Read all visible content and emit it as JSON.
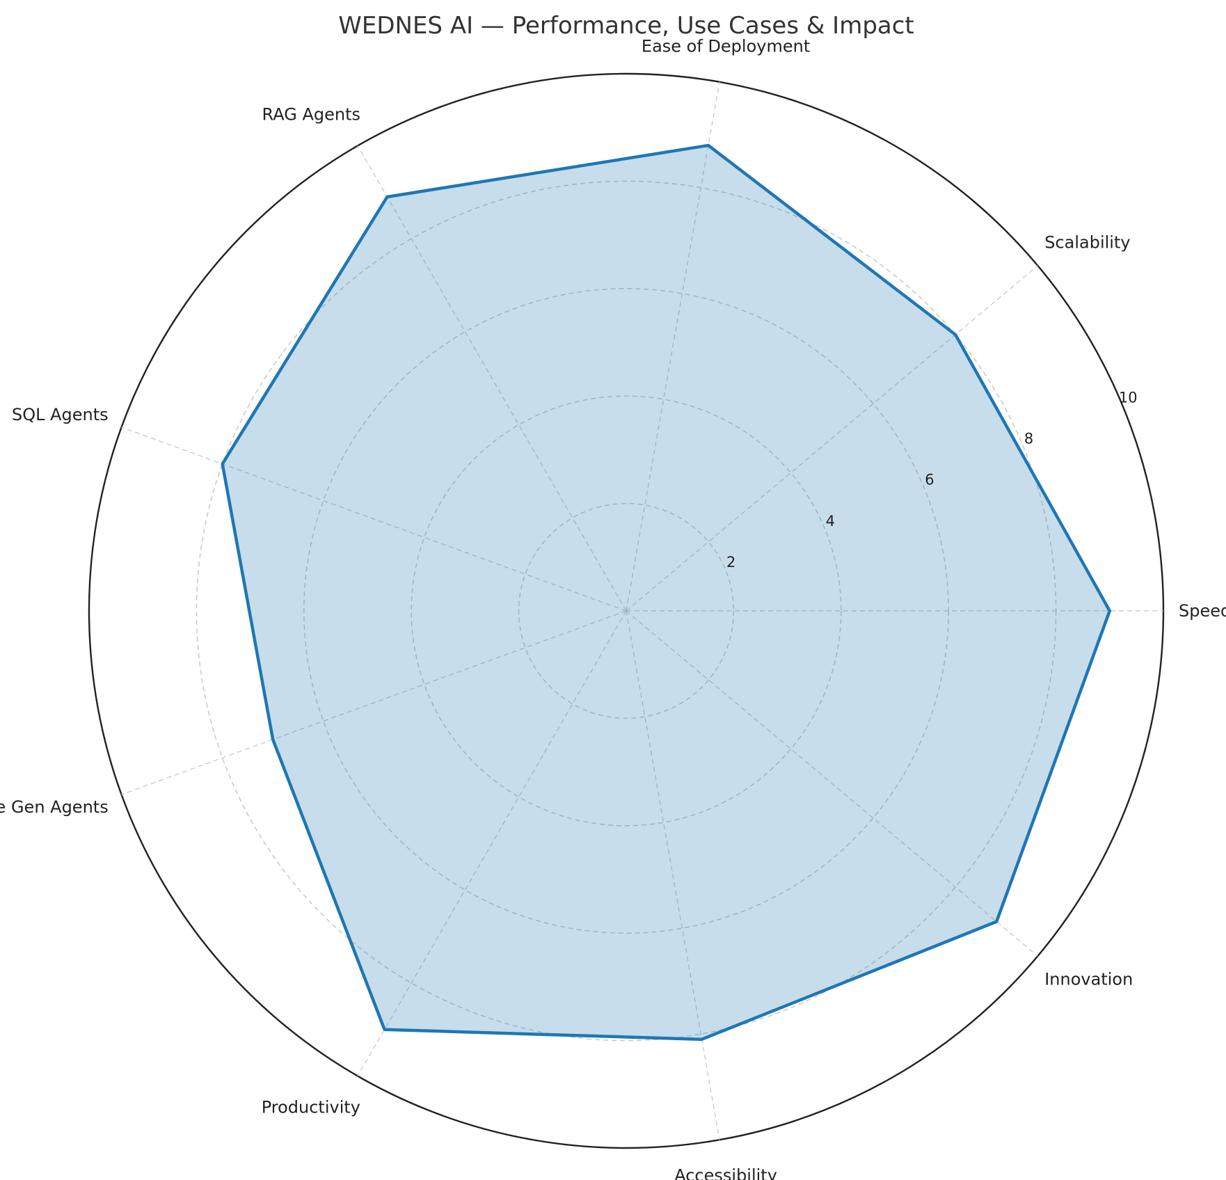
{
  "chart_data": {
    "type": "radar",
    "title": "WEDNES AI — Performance, Use Cases & Impact",
    "categories": [
      "Speed",
      "Scalability",
      "Ease of Deployment",
      "RAG Agents",
      "SQL Agents",
      "Image Gen Agents",
      "Productivity",
      "Accessibility",
      "Innovation"
    ],
    "series": [
      {
        "values": [
          9.0,
          8.0,
          8.8,
          8.9,
          8.0,
          7.0,
          9.0,
          8.1,
          9.0
        ]
      }
    ],
    "rlim": [
      0,
      10
    ],
    "rticks": [
      "2",
      "4",
      "6",
      "8",
      "10"
    ],
    "grid": true,
    "colors": {
      "line": "#1f77b4",
      "fill": "#1f77b4",
      "grid": "#c8c8c8",
      "outer": "#222222"
    }
  }
}
